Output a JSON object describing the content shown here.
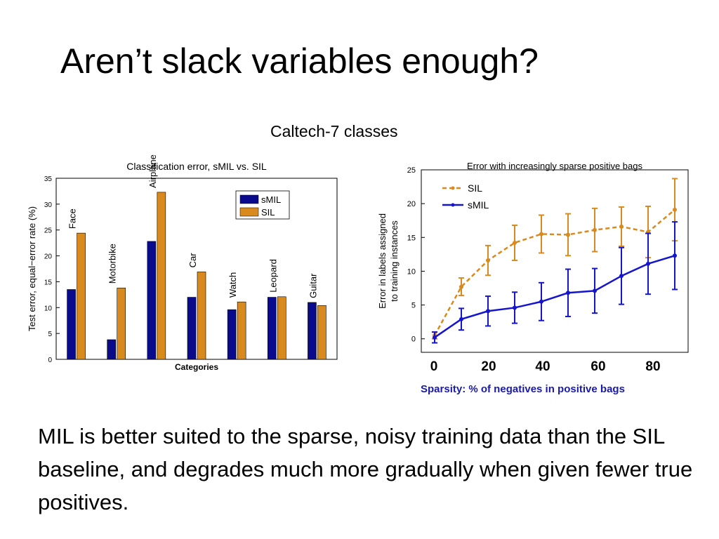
{
  "slide": {
    "title": "Aren’t slack variables enough?",
    "subtitle": "Caltech-7 classes",
    "body": "MIL is better suited to the sparse, noisy training data than the SIL baseline, and degrades much more gradually when given fewer true positives.",
    "x_tick_labels": [
      "0",
      "20",
      "40",
      "60",
      "80"
    ],
    "x_axis_label": "Sparsity: % of negatives in positive bags"
  },
  "chart_data": [
    {
      "type": "bar",
      "title": "Classification error, sMIL vs. SIL",
      "xlabel": "Categories",
      "ylabel": "Test error, equal−error rate (%)",
      "ylim": [
        0,
        35
      ],
      "yticks": [
        "0",
        "5",
        "10",
        "15",
        "20",
        "25",
        "30",
        "35"
      ],
      "categories": [
        "Face",
        "Motorbike",
        "Airplane",
        "Car",
        "Watch",
        "Leopard",
        "Guitar"
      ],
      "series": [
        {
          "name": "sMIL",
          "color": "#0a0a8c",
          "values": [
            13.5,
            3.8,
            22.8,
            12.0,
            9.6,
            12.0,
            11.0
          ]
        },
        {
          "name": "SIL",
          "color": "#d98a1e",
          "values": [
            24.4,
            13.8,
            32.3,
            16.9,
            11.1,
            12.1,
            10.4
          ]
        }
      ],
      "legend": "top-right",
      "grid": false
    },
    {
      "type": "line",
      "title": "Error with increasingly sparse positive bags",
      "ylabel": "Error in labels assigned to training instances",
      "ylabel_lines": [
        "Error in labels assigned",
        "to training instances"
      ],
      "ylim": [
        -2,
        25
      ],
      "yticks": [
        "0",
        "5",
        "10",
        "15",
        "20",
        "25"
      ],
      "x": [
        0,
        10,
        20,
        30,
        40,
        50,
        60,
        70,
        80,
        90
      ],
      "series": [
        {
          "name": "SIL",
          "color": "#d98a1e",
          "dashed": true,
          "values": [
            0.5,
            7.7,
            11.6,
            14.2,
            15.5,
            15.4,
            16.1,
            16.6,
            15.8,
            19.1
          ],
          "err": [
            0.5,
            1.3,
            2.2,
            2.6,
            2.8,
            3.1,
            3.2,
            2.9,
            3.8,
            4.6
          ]
        },
        {
          "name": "sMIL",
          "color": "#1515cc",
          "dashed": false,
          "values": [
            0.2,
            2.9,
            4.1,
            4.6,
            5.5,
            6.8,
            7.1,
            9.3,
            11.1,
            12.3
          ],
          "err": [
            0.8,
            1.6,
            2.2,
            2.3,
            2.8,
            3.5,
            3.3,
            4.2,
            4.5,
            5.0
          ]
        }
      ],
      "legend": "top-left",
      "grid": false
    }
  ]
}
